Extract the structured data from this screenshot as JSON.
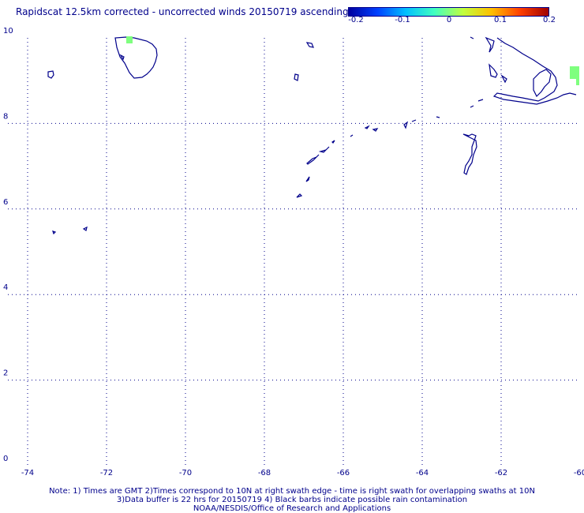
{
  "title": "Rapidscat 12.5km corrected - uncorrected winds 20150719 ascending",
  "colorbar": {
    "ticks": [
      "-0.2",
      "-0.1",
      "0",
      "0.1",
      "0.2"
    ],
    "min": -0.2,
    "max": 0.2,
    "colors": [
      "#0000a0",
      "#0040ff",
      "#00c0ff",
      "#40ffc0",
      "#c0ff40",
      "#ffc000",
      "#ff4000",
      "#a00000"
    ]
  },
  "map": {
    "lon_labels": [
      "-74",
      "-72",
      "-70",
      "-68",
      "-66",
      "-64",
      "-62",
      "-60"
    ],
    "lat_labels": [
      "0",
      "2",
      "4",
      "6",
      "8",
      "10"
    ],
    "lon_range": [
      -74.5,
      -60
    ],
    "lat_range": [
      0,
      10
    ],
    "coast_color": "#00008b",
    "grid_color": "#00008b",
    "patch_color": "#7fff7f"
  },
  "notes": [
    "Note: 1) Times are GMT 2)Times correspond to 10N at right swath edge - time is right swath for overlapping swaths at 10N",
    "3)Data buffer is 22 hrs for 20150719 4) Black barbs indicate possible rain contamination",
    "NOAA/NESDIS/Office of Research and Applications"
  ]
}
